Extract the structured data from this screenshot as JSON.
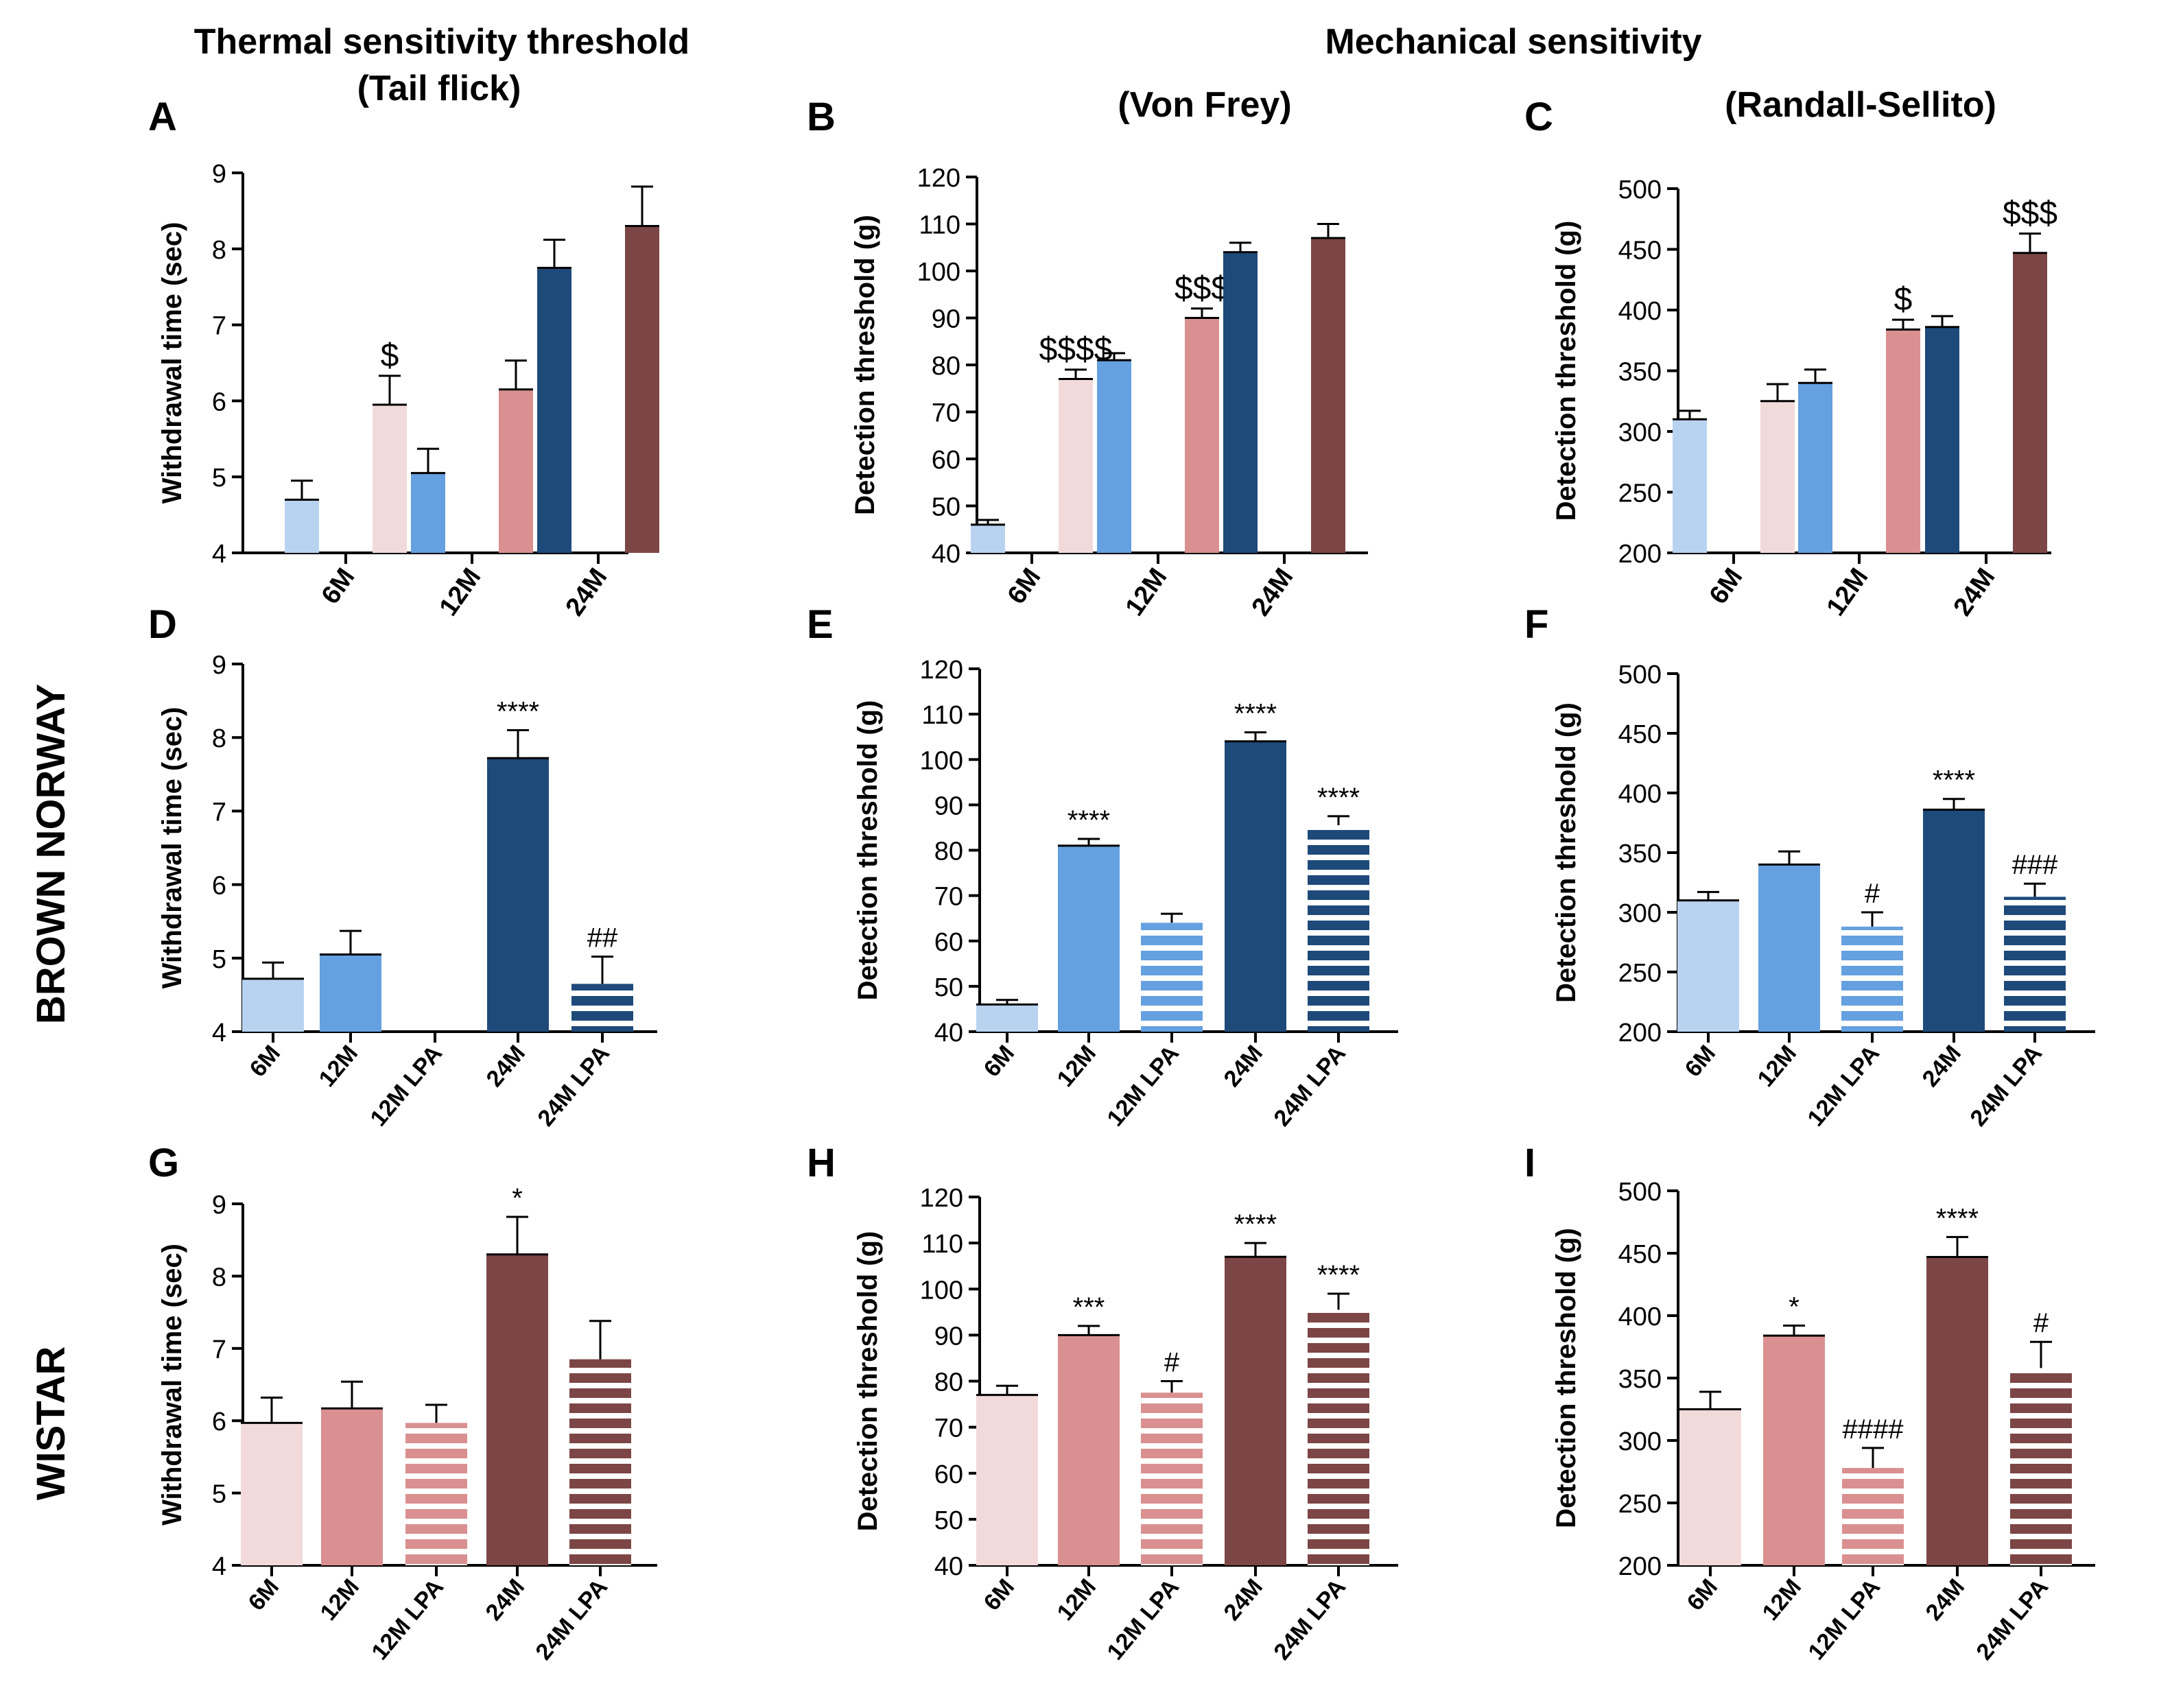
{
  "header": {
    "thermal_line1": "Thermal sensitivity threshold",
    "thermal_line2": "(Tail flick)",
    "mechanical": "Mechanical sensitivity",
    "von_frey": "(Von Frey)",
    "randall": "(Randall-Sellito)"
  },
  "row_labels": {
    "brown_norway": "BROWN NORWAY",
    "wistar": "WISTAR"
  },
  "colors": {
    "bn6": "#b8d3f0",
    "bn12": "#65a0e0",
    "bn24": "#1e4a7a",
    "w6": "#f2dadb",
    "w12": "#da9090",
    "w24": "#7d4646"
  },
  "chart_data": [
    {
      "panel": "A",
      "type": "bar",
      "ylabel": "Withdrawal time (sec)",
      "ylim": [
        4,
        9
      ],
      "yticks": [
        4,
        5,
        6,
        7,
        8,
        9
      ],
      "categories": [
        "6M",
        "12M",
        "24M"
      ],
      "series": [
        {
          "name": "Brown Norway",
          "values": [
            4.7,
            5.05,
            7.75
          ],
          "errors": [
            0.25,
            0.32,
            0.37
          ],
          "colors": [
            "#b8d3f0",
            "#65a0e0",
            "#1e4a7a"
          ],
          "annotations": [
            "",
            "",
            ""
          ]
        },
        {
          "name": "Wistar",
          "values": [
            5.95,
            6.15,
            8.3
          ],
          "errors": [
            0.38,
            0.38,
            0.52
          ],
          "colors": [
            "#f2dadb",
            "#da9090",
            "#7d4646"
          ],
          "annotations": [
            "$",
            "",
            ""
          ]
        }
      ]
    },
    {
      "panel": "B",
      "type": "bar",
      "ylabel": "Detection threshold (g)",
      "ylim": [
        40,
        120
      ],
      "yticks": [
        40,
        50,
        60,
        70,
        80,
        90,
        100,
        110,
        120
      ],
      "categories": [
        "6M",
        "12M",
        "24M"
      ],
      "series": [
        {
          "name": "Brown Norway",
          "values": [
            46,
            81,
            104
          ],
          "errors": [
            1,
            1.5,
            2
          ],
          "colors": [
            "#b8d3f0",
            "#65a0e0",
            "#1e4a7a"
          ],
          "annotations": [
            "",
            "",
            ""
          ]
        },
        {
          "name": "Wistar",
          "values": [
            77,
            90,
            107
          ],
          "errors": [
            2,
            2,
            3
          ],
          "colors": [
            "#f2dadb",
            "#da9090",
            "#7d4646"
          ],
          "annotations": [
            "$$$$",
            "$$$",
            ""
          ]
        }
      ]
    },
    {
      "panel": "C",
      "type": "bar",
      "ylabel": "Detection threshold (g)",
      "ylim": [
        200,
        500
      ],
      "yticks": [
        200,
        250,
        300,
        350,
        400,
        450,
        500
      ],
      "categories": [
        "6M",
        "12M",
        "24M"
      ],
      "series": [
        {
          "name": "Brown Norway",
          "values": [
            310,
            340,
            386
          ],
          "errors": [
            7,
            11,
            9
          ],
          "colors": [
            "#b8d3f0",
            "#65a0e0",
            "#1e4a7a"
          ],
          "annotations": [
            "",
            "",
            ""
          ]
        },
        {
          "name": "Wistar",
          "values": [
            325,
            384,
            447
          ],
          "errors": [
            14,
            8,
            16
          ],
          "colors": [
            "#f2dadb",
            "#da9090",
            "#7d4646"
          ],
          "annotations": [
            "",
            "$",
            "$$$"
          ]
        }
      ]
    },
    {
      "panel": "D",
      "type": "bar",
      "ylabel": "Withdrawal time (sec)",
      "ylim": [
        4,
        9
      ],
      "yticks": [
        4,
        5,
        6,
        7,
        8,
        9
      ],
      "categories": [
        "6M",
        "12M",
        "12M LPA",
        "24M",
        "24M LPA"
      ],
      "values": [
        4.72,
        5.05,
        null,
        7.72,
        4.65
      ],
      "errors": [
        0.22,
        0.32,
        null,
        0.38,
        0.37
      ],
      "colors": [
        "#b8d3f0",
        "#65a0e0",
        "#65a0e0",
        "#1e4a7a",
        "#1e4a7a"
      ],
      "striped": [
        false,
        false,
        true,
        false,
        true
      ],
      "annotations": [
        "",
        "",
        "",
        "****",
        "##"
      ]
    },
    {
      "panel": "E",
      "type": "bar",
      "ylabel": "Detection threshold (g)",
      "ylim": [
        40,
        120
      ],
      "yticks": [
        40,
        50,
        60,
        70,
        80,
        90,
        100,
        110,
        120
      ],
      "categories": [
        "6M",
        "12M",
        "12M LPA",
        "24M",
        "24M LPA"
      ],
      "values": [
        46,
        81,
        64,
        104,
        85.5
      ],
      "errors": [
        1,
        1.5,
        2,
        2,
        2
      ],
      "colors": [
        "#b8d3f0",
        "#65a0e0",
        "#65a0e0",
        "#1e4a7a",
        "#1e4a7a"
      ],
      "striped": [
        false,
        false,
        true,
        false,
        true
      ],
      "annotations": [
        "",
        "****",
        "",
        "****",
        "****"
      ]
    },
    {
      "panel": "F",
      "type": "bar",
      "ylabel": "Detection threshold (g)",
      "ylim": [
        200,
        500
      ],
      "yticks": [
        200,
        250,
        300,
        350,
        400,
        450,
        500
      ],
      "categories": [
        "6M",
        "12M",
        "12M LPA",
        "24M",
        "24M LPA"
      ],
      "values": [
        310,
        340,
        288,
        386,
        313
      ],
      "errors": [
        7,
        11,
        12,
        9,
        11
      ],
      "colors": [
        "#b8d3f0",
        "#65a0e0",
        "#65a0e0",
        "#1e4a7a",
        "#1e4a7a"
      ],
      "striped": [
        false,
        false,
        true,
        false,
        true
      ],
      "annotations": [
        "",
        "",
        "#",
        "****",
        "###"
      ]
    },
    {
      "panel": "G",
      "type": "bar",
      "ylabel": "Withdrawal time (sec)",
      "ylim": [
        4,
        9
      ],
      "yticks": [
        4,
        5,
        6,
        7,
        8,
        9
      ],
      "categories": [
        "6M",
        "12M",
        "12M LPA",
        "24M",
        "24M LPA"
      ],
      "values": [
        5.97,
        6.17,
        5.97,
        8.3,
        6.85
      ],
      "errors": [
        0.35,
        0.37,
        0.25,
        0.52,
        0.53
      ],
      "colors": [
        "#f2dadb",
        "#da9090",
        "#da9090",
        "#7d4646",
        "#7d4646"
      ],
      "striped": [
        false,
        false,
        true,
        false,
        true
      ],
      "annotations": [
        "",
        "",
        "",
        "*",
        ""
      ]
    },
    {
      "panel": "H",
      "type": "bar",
      "ylabel": "Detection threshold (g)",
      "ylim": [
        40,
        120
      ],
      "yticks": [
        40,
        50,
        60,
        70,
        80,
        90,
        100,
        110,
        120
      ],
      "categories": [
        "6M",
        "12M",
        "12M LPA",
        "24M",
        "24M LPA"
      ],
      "values": [
        77,
        90,
        77.5,
        107,
        95.5
      ],
      "errors": [
        2,
        2,
        2.5,
        3,
        3.5
      ],
      "colors": [
        "#f2dadb",
        "#da9090",
        "#da9090",
        "#7d4646",
        "#7d4646"
      ],
      "striped": [
        false,
        false,
        true,
        false,
        true
      ],
      "annotations": [
        "",
        "***",
        "#",
        "****",
        "****"
      ]
    },
    {
      "panel": "I",
      "type": "bar",
      "ylabel": "Detection threshold (g)",
      "ylim": [
        200,
        500
      ],
      "yticks": [
        200,
        250,
        300,
        350,
        400,
        450,
        500
      ],
      "categories": [
        "6M",
        "12M",
        "12M LPA",
        "24M",
        "24M LPA"
      ],
      "values": [
        325,
        384,
        278,
        447,
        358
      ],
      "errors": [
        14,
        8,
        16,
        16,
        21
      ],
      "colors": [
        "#f2dadb",
        "#da9090",
        "#da9090",
        "#7d4646",
        "#7d4646"
      ],
      "striped": [
        false,
        false,
        true,
        false,
        true
      ],
      "annotations": [
        "",
        "*",
        "####",
        "****",
        "#"
      ]
    }
  ]
}
